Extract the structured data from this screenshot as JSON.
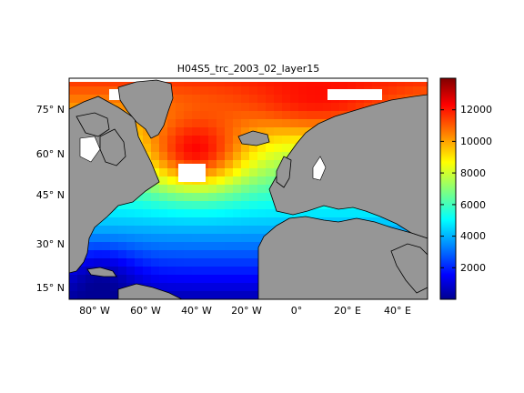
{
  "title": "H04S5_trc_2003_02_layer15",
  "lat_ticks": [
    "15° N",
    "30° N",
    "45° N",
    "60° N",
    "75° N"
  ],
  "lon_ticks": [
    "80° W",
    "60° W",
    "40° W",
    "20° W",
    "0°",
    "20° E",
    "40° E"
  ],
  "colorbar": {
    "ticks": [
      "2000",
      "4000",
      "6000",
      "8000",
      "10000",
      "12000"
    ],
    "min": 0,
    "max": 14000,
    "colormap": "jet"
  },
  "colors": {
    "land": "#969696",
    "nodata": "#ffffff",
    "coast": "#000000"
  }
}
